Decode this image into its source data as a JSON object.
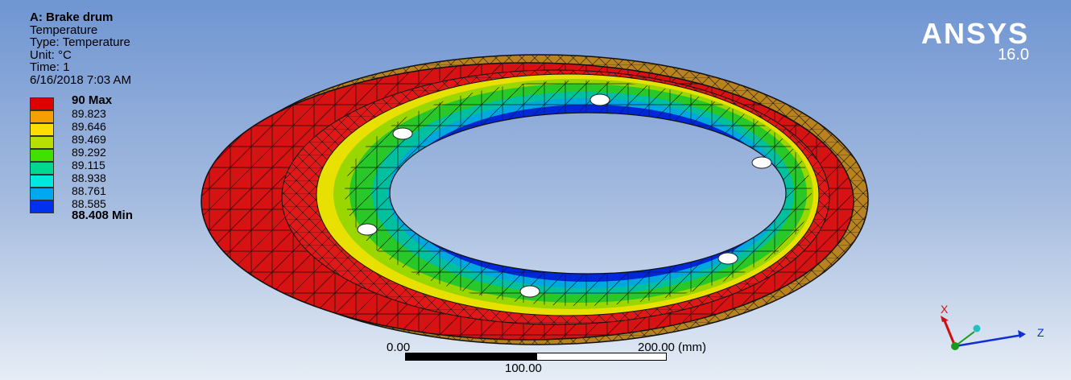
{
  "info": {
    "title": "A: Brake drum",
    "result": "Temperature",
    "type": "Type: Temperature",
    "unit": "Unit: °C",
    "time": "Time: 1",
    "date": "6/16/2018 7:03 AM"
  },
  "legend": {
    "max_label": "90 Max",
    "min_label": "88.408 Min",
    "levels": [
      "89.823",
      "89.646",
      "89.469",
      "89.292",
      "89.115",
      "88.938",
      "88.761",
      "88.585"
    ],
    "colors": [
      "#e00000",
      "#f5a000",
      "#ffdd00",
      "#b5e000",
      "#40e000",
      "#00d890",
      "#00e8e0",
      "#00a8f0",
      "#0030f0"
    ]
  },
  "logo": {
    "brand": "ANSYS",
    "version": "16.0"
  },
  "scale": {
    "left": "0.00",
    "mid": "100.00",
    "right": "200.00 (mm)"
  },
  "triad": {
    "x": "X",
    "z": "Z"
  }
}
